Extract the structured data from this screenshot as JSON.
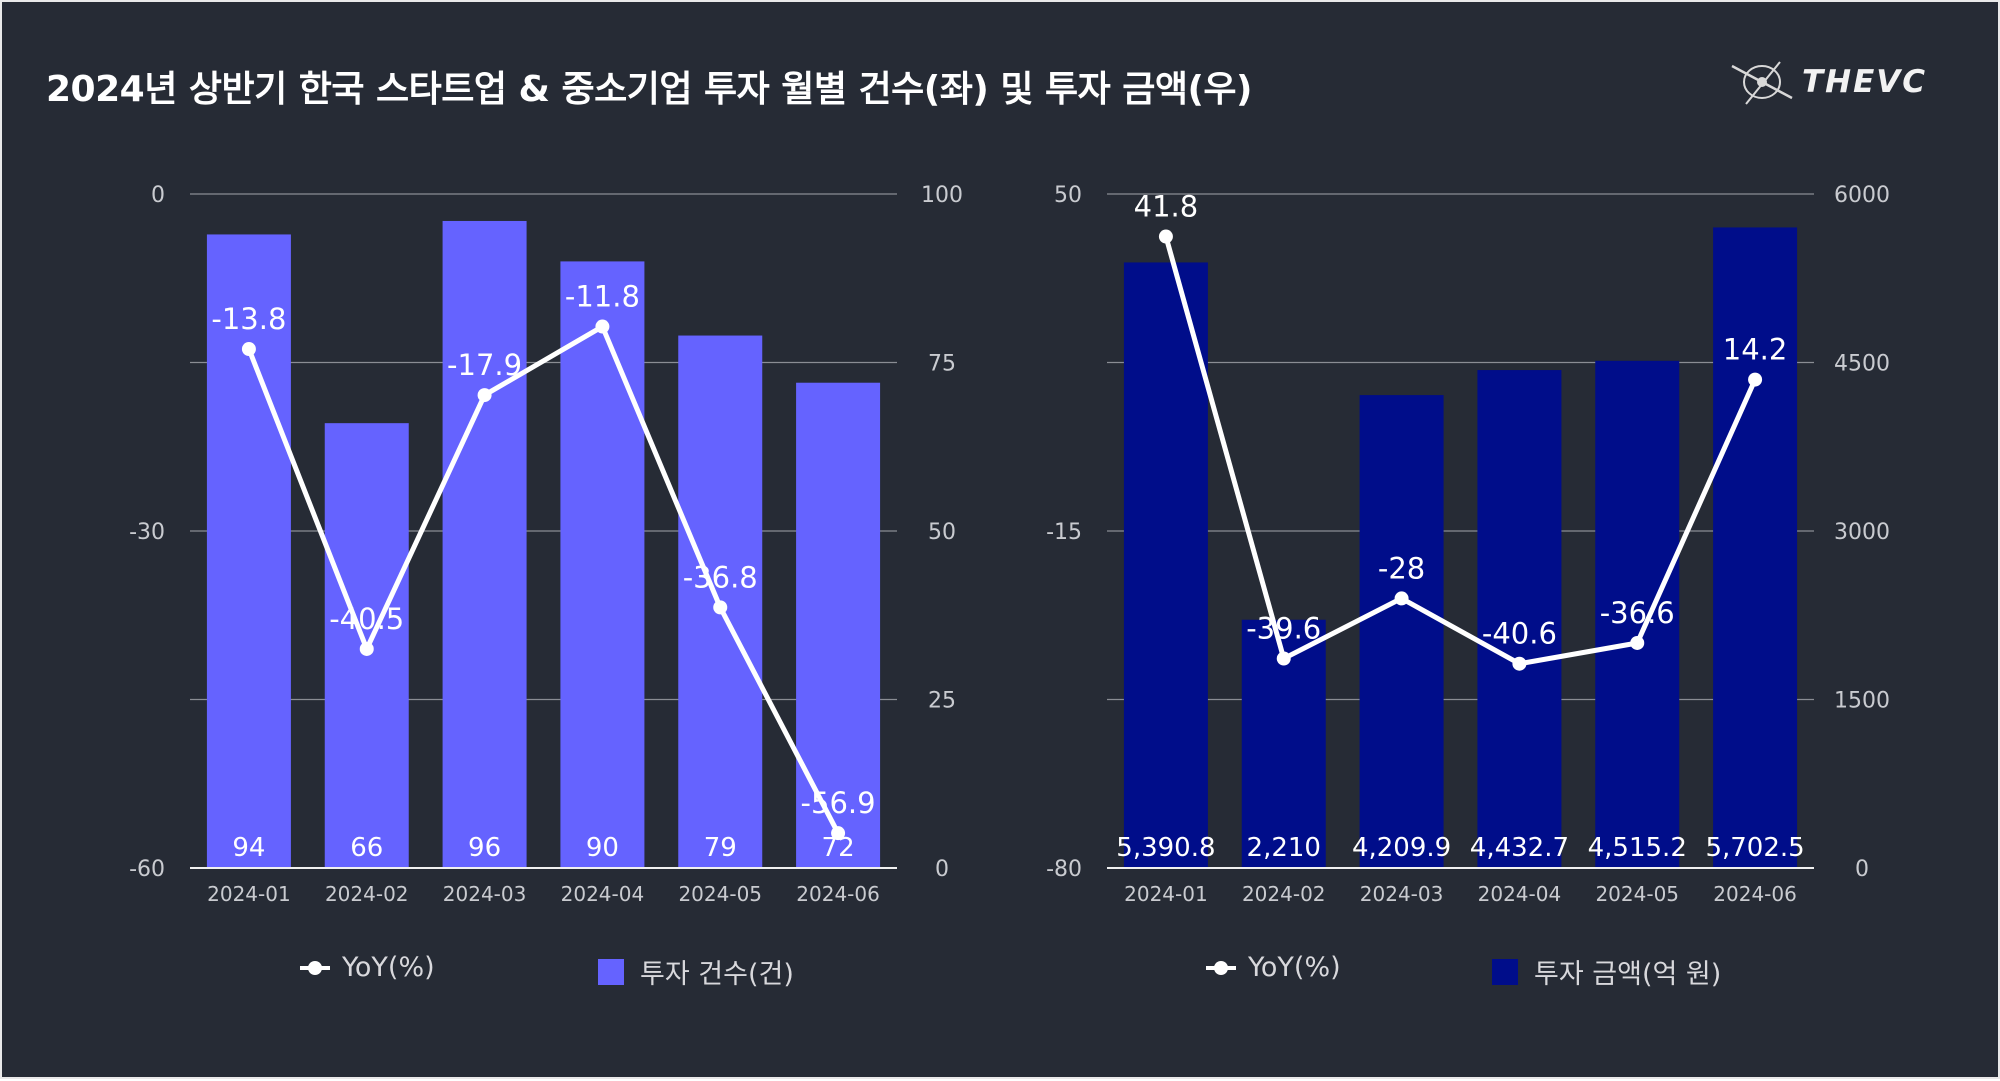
{
  "title": "2024년 상반기 한국 스타트업 & 중소기업 투자 월별 건수(좌) 및  투자 금액(우)",
  "logo_text": "THEVC",
  "colors": {
    "background": "#262b35",
    "left_bar": "#6563ff",
    "right_bar": "#000d8a",
    "line": "#ffffff",
    "grid": "#8a8d94",
    "axis_text": "#c9cbd0"
  },
  "chart_data": [
    {
      "type": "bar",
      "categories": [
        "2024-01",
        "2024-02",
        "2024-03",
        "2024-04",
        "2024-05",
        "2024-06"
      ],
      "series": [
        {
          "name": "투자 건수(건)",
          "type": "bar",
          "axis": "right",
          "values": [
            94,
            66,
            96,
            90,
            79,
            72
          ],
          "labels": [
            "94",
            "66",
            "96",
            "90",
            "79",
            "72"
          ]
        },
        {
          "name": "YoY(%)",
          "type": "line",
          "axis": "left",
          "values": [
            -13.8,
            -40.5,
            -17.9,
            -11.8,
            -36.8,
            -56.9
          ],
          "labels": [
            "-13.8",
            "-40.5",
            "-17.9",
            "-11.8",
            "-36.8",
            "-56.9"
          ]
        }
      ],
      "left_axis": {
        "min": -60,
        "max": 0,
        "ticks": [
          "0",
          "-30",
          "-60"
        ],
        "tick_values": [
          0,
          -30,
          -60
        ]
      },
      "right_axis": {
        "min": 0,
        "max": 100,
        "ticks": [
          "100",
          "75",
          "50",
          "25",
          "0"
        ],
        "tick_values": [
          100,
          75,
          50,
          25,
          0
        ]
      },
      "legend": [
        {
          "name": "YoY(%)",
          "symbol": "line"
        },
        {
          "name": "투자 건수(건)",
          "symbol": "box"
        }
      ]
    },
    {
      "type": "bar",
      "categories": [
        "2024-01",
        "2024-02",
        "2024-03",
        "2024-04",
        "2024-05",
        "2024-06"
      ],
      "series": [
        {
          "name": "투자 금액(억 원)",
          "type": "bar",
          "axis": "right",
          "values": [
            5390.8,
            2210,
            4209.9,
            4432.7,
            4515.2,
            5702.5
          ],
          "labels": [
            "5,390.8",
            "2,210",
            "4,209.9",
            "4,432.7",
            "4,515.2",
            "5,702.5"
          ]
        },
        {
          "name": "YoY(%)",
          "type": "line",
          "axis": "left",
          "values": [
            41.8,
            -39.6,
            -28,
            -40.6,
            -36.6,
            14.2
          ],
          "labels": [
            "41.8",
            "-39.6",
            "-28",
            "-40.6",
            "-36.6",
            "14.2"
          ]
        }
      ],
      "left_axis": {
        "min": -80,
        "max": 50,
        "ticks": [
          "50",
          "-15",
          "-80"
        ],
        "tick_values": [
          50,
          -15,
          -80
        ]
      },
      "right_axis": {
        "min": 0,
        "max": 6000,
        "ticks": [
          "6000",
          "4500",
          "3000",
          "1500",
          "0"
        ],
        "tick_values": [
          6000,
          4500,
          3000,
          1500,
          0
        ]
      },
      "legend": [
        {
          "name": "YoY(%)",
          "symbol": "line"
        },
        {
          "name": "투자 금액(억 원)",
          "symbol": "box"
        }
      ]
    }
  ]
}
